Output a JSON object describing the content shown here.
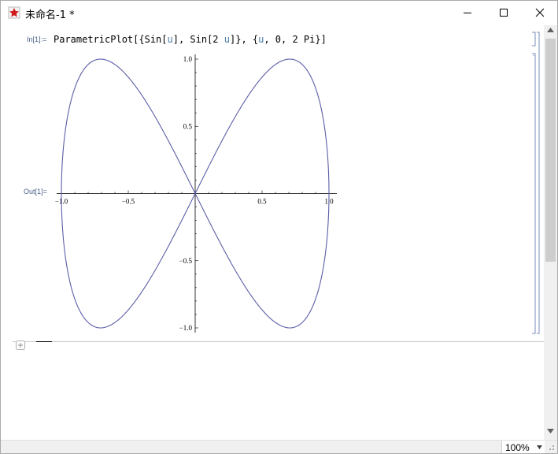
{
  "window": {
    "title": "未命名-1 *",
    "app_icon": "mathematica-icon",
    "controls": [
      "minimize-icon",
      "maximize-icon",
      "close-icon"
    ]
  },
  "notebook": {
    "input_label": "In[1]:=",
    "input_code": {
      "head": "ParametricPlot[{Sin[",
      "var1": "u",
      "mid": "], Sin[2 ",
      "var2": "u",
      "mid2": "]}, {",
      "var3": "u",
      "tail": ", 0, 2 Pi}]"
    },
    "output_label": "Out[1]="
  },
  "chart_data": {
    "type": "line",
    "description_equation": "x = sin(u), y = sin(2u), u in [0, 2π]",
    "xlim": [
      -1.0,
      1.0
    ],
    "ylim": [
      -1.0,
      1.0
    ],
    "x_ticks": [
      "−1.0",
      "−0.5",
      "0.5",
      "1.0"
    ],
    "y_ticks": [
      "1.0",
      "0.5",
      "−0.5",
      "−1.0"
    ],
    "x_tick_values": [
      -1.0,
      -0.5,
      0.5,
      1.0
    ],
    "y_tick_values": [
      1.0,
      0.5,
      -0.5,
      -1.0
    ],
    "series_color": "#5b5ea6",
    "grid": false
  },
  "statusbar": {
    "zoom": "100%"
  }
}
